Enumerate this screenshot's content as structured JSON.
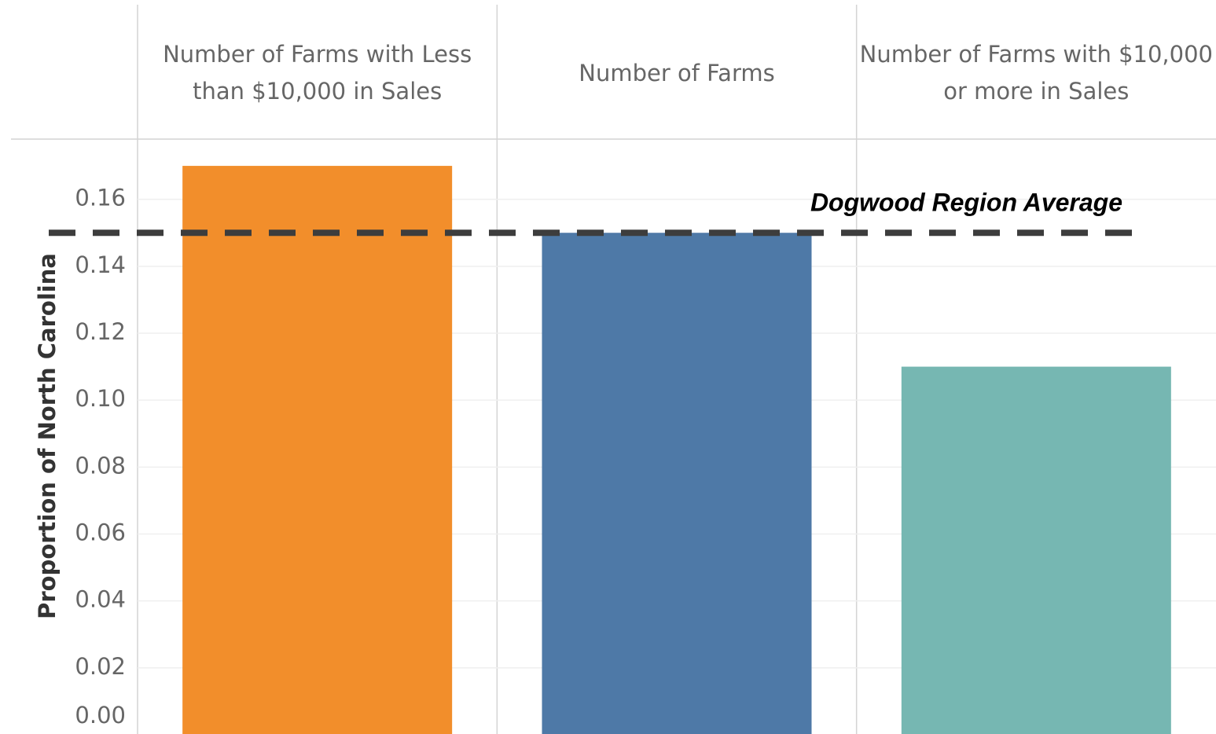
{
  "chart_data": {
    "type": "bar",
    "categories": [
      "Number of Farms with Less than $10,000 in Sales",
      "Number of Farms",
      "Number of Farms with $10,000 or more in Sales"
    ],
    "values": [
      0.17,
      0.15,
      0.11
    ],
    "colors": [
      "#f28e2b",
      "#4e79a7",
      "#76b7b2"
    ],
    "y_label": "Proportion of North Carolina",
    "ylim": [
      0,
      0.178
    ],
    "yticks": [
      {
        "value": 0,
        "label": "0.00"
      },
      {
        "value": 0.02,
        "label": "0.02"
      },
      {
        "value": 0.04,
        "label": "0.04"
      },
      {
        "value": 0.06,
        "label": "0.06"
      },
      {
        "value": 0.08,
        "label": "0.08"
      },
      {
        "value": 0.1,
        "label": "0.10"
      },
      {
        "value": 0.12,
        "label": "0.12"
      },
      {
        "value": 0.14,
        "label": "0.14"
      },
      {
        "value": 0.16,
        "label": "0.16"
      }
    ],
    "grid": true,
    "reference_line": {
      "value": 0.15,
      "label": "Dogwood Region Average"
    }
  }
}
